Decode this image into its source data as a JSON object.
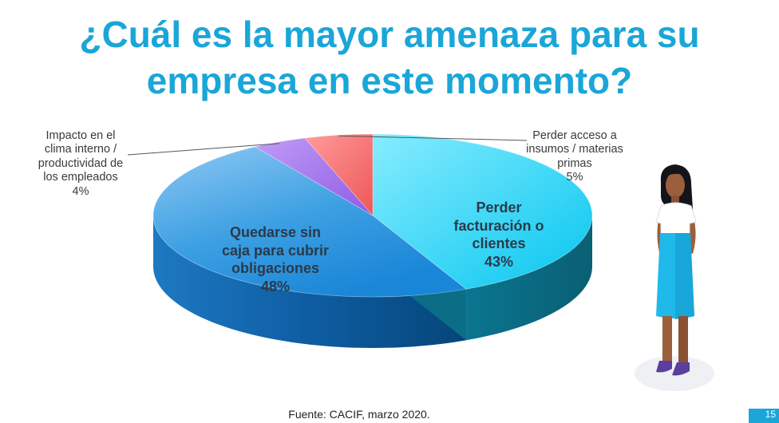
{
  "title": {
    "line1": "¿Cuál es la mayor amenaza para su",
    "line2": "empresa en este momento?"
  },
  "chart_data": {
    "type": "pie",
    "series": [
      {
        "label_lines": [
          "Perder",
          "facturación o",
          "clientes"
        ],
        "value": 43,
        "value_label": "43%",
        "color": "#1fd0f5"
      },
      {
        "label_lines": [
          "Quedarse sin",
          "caja para cubrir",
          "obligaciones"
        ],
        "value": 48,
        "value_label": "48%",
        "color": "#3a9fe2"
      },
      {
        "label_lines": [
          "Impacto en el",
          "clima interno /",
          "productividad de",
          "los empleados"
        ],
        "value": 4,
        "value_label": "4%",
        "color": "#a070e8"
      },
      {
        "label_lines": [
          "Perder acceso a",
          "insumos / materias",
          "primas"
        ],
        "value": 5,
        "value_label": "5%",
        "color": "#f26565"
      }
    ]
  },
  "source": "Fuente: CACIF, marzo 2020.",
  "page_number": "15"
}
